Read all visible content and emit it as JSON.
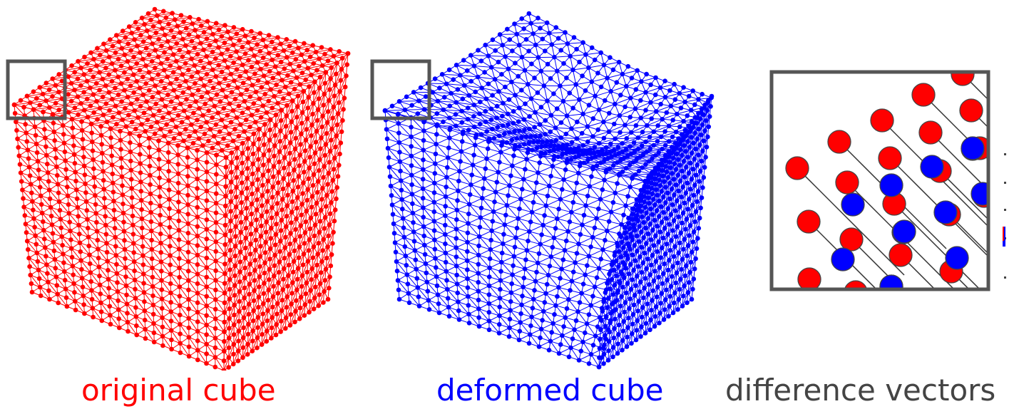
{
  "panels": [
    {
      "id": "original",
      "caption": "original cube",
      "color": "#ff0000"
    },
    {
      "id": "deformed",
      "caption": "deformed cube",
      "color": "#0000ff"
    },
    {
      "id": "difference",
      "caption": "difference vectors",
      "color": "#444444"
    }
  ],
  "colors": {
    "red_vertex": "#ff0000",
    "blue_vertex": "#0000ff",
    "frame": "#555555",
    "vector_line": "#333333"
  }
}
